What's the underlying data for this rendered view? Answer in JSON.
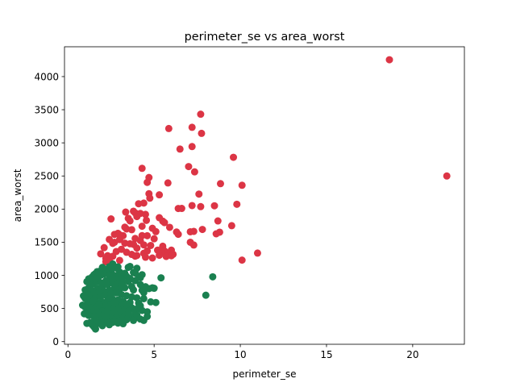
{
  "chart_data": {
    "type": "scatter",
    "title": "perimeter_se vs area_worst",
    "xlabel": "perimeter_se",
    "ylabel": "area_worst",
    "xlim": [
      -0.2,
      23.0
    ],
    "ylim": [
      -40,
      4450
    ],
    "xticks": [
      0,
      5,
      10,
      15,
      20
    ],
    "yticks": [
      0,
      500,
      1000,
      1500,
      2000,
      2500,
      3000,
      3500,
      4000
    ],
    "grid": false,
    "legend": "none",
    "series": [
      {
        "color": "#dc3545",
        "points": [
          [
            18.65,
            4254
          ],
          [
            21.98,
            2500
          ],
          [
            7.7,
            3432
          ],
          [
            5.85,
            3216
          ],
          [
            7.2,
            3234
          ],
          [
            7.75,
            3143
          ],
          [
            6.5,
            2906
          ],
          [
            7.2,
            2944
          ],
          [
            9.6,
            2782
          ],
          [
            7.0,
            2642
          ],
          [
            4.3,
            2615
          ],
          [
            7.35,
            2562
          ],
          [
            4.7,
            2477
          ],
          [
            4.6,
            2403
          ],
          [
            5.8,
            2395
          ],
          [
            8.85,
            2384
          ],
          [
            10.1,
            2360
          ],
          [
            4.7,
            2232
          ],
          [
            5.3,
            2215
          ],
          [
            7.6,
            2227
          ],
          [
            4.75,
            2165
          ],
          [
            4.4,
            2091
          ],
          [
            4.1,
            2081
          ],
          [
            9.8,
            2073
          ],
          [
            7.2,
            2053
          ],
          [
            7.7,
            2037
          ],
          [
            8.5,
            2050
          ],
          [
            6.4,
            2009
          ],
          [
            6.6,
            2010
          ],
          [
            3.35,
            1955
          ],
          [
            3.8,
            1968
          ],
          [
            3.9,
            1942
          ],
          [
            4.2,
            1935
          ],
          [
            4.5,
            1920
          ],
          [
            4.0,
            1887
          ],
          [
            5.3,
            1870
          ],
          [
            3.5,
            1860
          ],
          [
            2.5,
            1852
          ],
          [
            4.55,
            1830
          ],
          [
            3.6,
            1822
          ],
          [
            8.7,
            1821
          ],
          [
            5.5,
            1818
          ],
          [
            5.6,
            1796
          ],
          [
            9.5,
            1750
          ],
          [
            4.3,
            1741
          ],
          [
            5.9,
            1725
          ],
          [
            3.3,
            1727
          ],
          [
            4.9,
            1710
          ],
          [
            3.4,
            1700
          ],
          [
            3.7,
            1689
          ],
          [
            7.8,
            1693
          ],
          [
            5.1,
            1660
          ],
          [
            6.3,
            1654
          ],
          [
            7.3,
            1664
          ],
          [
            7.1,
            1658
          ],
          [
            8.8,
            1652
          ],
          [
            8.6,
            1627
          ],
          [
            2.9,
            1634
          ],
          [
            2.7,
            1618
          ],
          [
            3.0,
            1612
          ],
          [
            4.3,
            1600
          ],
          [
            3.2,
            1598
          ],
          [
            4.6,
            1598
          ],
          [
            6.4,
            1620
          ],
          [
            2.4,
            1542
          ],
          [
            3.0,
            1540
          ],
          [
            3.9,
            1557
          ],
          [
            5.0,
            1552
          ],
          [
            4.2,
            1525
          ],
          [
            2.7,
            1500
          ],
          [
            7.1,
            1500
          ],
          [
            3.3,
            1486
          ],
          [
            2.6,
            1483
          ],
          [
            3.6,
            1477
          ],
          [
            3.8,
            1468
          ],
          [
            4.4,
            1460
          ],
          [
            4.8,
            1451
          ],
          [
            7.3,
            1458
          ],
          [
            5.5,
            1440
          ],
          [
            2.1,
            1418
          ],
          [
            4.0,
            1412
          ],
          [
            3.1,
            1393
          ],
          [
            5.2,
            1380
          ],
          [
            6.0,
            1380
          ],
          [
            4.6,
            1368
          ],
          [
            5.6,
            1369
          ],
          [
            2.8,
            1360
          ],
          [
            3.4,
            1348
          ],
          [
            5.4,
            1346
          ],
          [
            4.4,
            1333
          ],
          [
            5.8,
            1340
          ],
          [
            6.1,
            1317
          ],
          [
            11.0,
            1336
          ],
          [
            1.9,
            1325
          ],
          [
            3.7,
            1316
          ],
          [
            5.3,
            1303
          ],
          [
            4.0,
            1300
          ],
          [
            2.3,
            1297
          ],
          [
            3.9,
            1290
          ],
          [
            2.6,
            1288
          ],
          [
            5.7,
            1285
          ],
          [
            6.0,
            1296
          ],
          [
            4.5,
            1274
          ],
          [
            2.2,
            1258
          ],
          [
            4.9,
            1262
          ],
          [
            10.1,
            1230
          ],
          [
            2.2,
            1206
          ],
          [
            2.4,
            1240
          ],
          [
            3.0,
            1226
          ]
        ]
      },
      {
        "color": "#1a8050",
        "points": [
          [
            8.4,
            978
          ],
          [
            8.0,
            700
          ],
          [
            5.4,
            963
          ],
          [
            4.2,
            965
          ],
          [
            4.9,
            812
          ],
          [
            5.0,
            805
          ],
          [
            4.7,
            800
          ],
          [
            4.3,
            776
          ],
          [
            3.4,
            986
          ],
          [
            3.2,
            996
          ],
          [
            3.0,
            1050
          ],
          [
            2.9,
            1128
          ],
          [
            3.5,
            1121
          ],
          [
            2.6,
            1172
          ],
          [
            2.8,
            1110
          ],
          [
            2.5,
            1072
          ],
          [
            2.3,
            1058
          ],
          [
            2.2,
            1087
          ],
          [
            1.9,
            1070
          ],
          [
            1.7,
            1057
          ],
          [
            1.6,
            1027
          ],
          [
            1.5,
            1008
          ],
          [
            1.4,
            975
          ],
          [
            1.2,
            947
          ],
          [
            1.1,
            905
          ],
          [
            1.3,
            895
          ],
          [
            1.5,
            935
          ],
          [
            1.7,
            972
          ],
          [
            1.9,
            1000
          ],
          [
            2.1,
            1017
          ],
          [
            2.4,
            1003
          ],
          [
            2.7,
            999
          ],
          [
            3.0,
            988
          ],
          [
            3.3,
            1031
          ],
          [
            3.8,
            1043
          ],
          [
            4.0,
            1107
          ],
          [
            4.1,
            979
          ],
          [
            3.6,
            952
          ],
          [
            3.1,
            941
          ],
          [
            2.8,
            929
          ],
          [
            2.5,
            933
          ],
          [
            2.2,
            917
          ],
          [
            1.8,
            905
          ],
          [
            1.5,
            876
          ],
          [
            1.3,
            848
          ],
          [
            1.2,
            810
          ],
          [
            1.0,
            780
          ],
          [
            1.4,
            770
          ],
          [
            1.7,
            802
          ],
          [
            2.0,
            830
          ],
          [
            2.3,
            859
          ],
          [
            2.6,
            880
          ],
          [
            2.9,
            872
          ],
          [
            3.2,
            893
          ],
          [
            3.5,
            908
          ],
          [
            3.9,
            920
          ],
          [
            4.2,
            861
          ],
          [
            4.5,
            828
          ],
          [
            3.7,
            830
          ],
          [
            3.3,
            812
          ],
          [
            3.0,
            790
          ],
          [
            2.7,
            805
          ],
          [
            2.4,
            775
          ],
          [
            2.1,
            760
          ],
          [
            1.8,
            742
          ],
          [
            1.5,
            725
          ],
          [
            1.2,
            705
          ],
          [
            0.9,
            690
          ],
          [
            1.0,
            652
          ],
          [
            1.3,
            640
          ],
          [
            1.6,
            660
          ],
          [
            1.9,
            680
          ],
          [
            2.2,
            702
          ],
          [
            2.5,
            720
          ],
          [
            2.8,
            735
          ],
          [
            3.1,
            710
          ],
          [
            3.4,
            693
          ],
          [
            3.7,
            675
          ],
          [
            4.0,
            660
          ],
          [
            4.4,
            648
          ],
          [
            4.8,
            600
          ],
          [
            5.1,
            590
          ],
          [
            4.1,
            580
          ],
          [
            3.6,
            590
          ],
          [
            3.2,
            610
          ],
          [
            2.9,
            628
          ],
          [
            2.6,
            640
          ],
          [
            2.3,
            622
          ],
          [
            2.0,
            600
          ],
          [
            1.7,
            588
          ],
          [
            1.4,
            570
          ],
          [
            1.1,
            560
          ],
          [
            0.85,
            550
          ],
          [
            1.0,
            520
          ],
          [
            1.3,
            510
          ],
          [
            1.6,
            505
          ],
          [
            1.9,
            525
          ],
          [
            2.2,
            540
          ],
          [
            2.5,
            555
          ],
          [
            2.8,
            568
          ],
          [
            3.1,
            540
          ],
          [
            3.4,
            525
          ],
          [
            3.7,
            510
          ],
          [
            4.0,
            495
          ],
          [
            4.3,
            470
          ],
          [
            4.6,
            450
          ],
          [
            3.9,
            440
          ],
          [
            3.5,
            455
          ],
          [
            3.2,
            470
          ],
          [
            2.9,
            488
          ],
          [
            2.6,
            498
          ],
          [
            2.3,
            478
          ],
          [
            2.0,
            460
          ],
          [
            1.7,
            448
          ],
          [
            1.4,
            440
          ],
          [
            1.1,
            430
          ],
          [
            0.95,
            420
          ],
          [
            1.2,
            395
          ],
          [
            1.5,
            380
          ],
          [
            1.8,
            395
          ],
          [
            2.1,
            410
          ],
          [
            2.4,
            420
          ],
          [
            2.7,
            432
          ],
          [
            3.0,
            410
          ],
          [
            3.3,
            395
          ],
          [
            3.6,
            380
          ],
          [
            3.9,
            360
          ],
          [
            4.2,
            340
          ],
          [
            4.6,
            380
          ],
          [
            4.4,
            320
          ],
          [
            3.8,
            320
          ],
          [
            3.4,
            330
          ],
          [
            3.1,
            345
          ],
          [
            2.8,
            360
          ],
          [
            2.5,
            350
          ],
          [
            2.2,
            335
          ],
          [
            1.9,
            320
          ],
          [
            1.6,
            305
          ],
          [
            1.3,
            290
          ],
          [
            1.1,
            275
          ],
          [
            1.4,
            255
          ],
          [
            1.7,
            270
          ],
          [
            2.0,
            285
          ],
          [
            2.3,
            300
          ],
          [
            2.6,
            290
          ],
          [
            2.9,
            280
          ],
          [
            3.2,
            270
          ],
          [
            1.5,
            225
          ],
          [
            1.6,
            190
          ],
          [
            2.0,
            240
          ],
          [
            2.4,
            255
          ],
          [
            2.7,
            312
          ],
          [
            3.0,
            300
          ],
          [
            3.6,
            1135
          ],
          [
            3.9,
            1035
          ],
          [
            4.3,
            1010
          ],
          [
            2.0,
            1120
          ],
          [
            2.4,
            1130
          ],
          [
            1.8,
            1040
          ],
          [
            1.6,
            950
          ],
          [
            2.6,
            945
          ],
          [
            2.0,
            880
          ],
          [
            3.1,
            860
          ],
          [
            3.8,
            780
          ],
          [
            4.4,
            740
          ],
          [
            2.4,
            650
          ],
          [
            1.5,
            620
          ],
          [
            1.8,
            560
          ],
          [
            2.7,
            595
          ],
          [
            3.4,
            560
          ],
          [
            4.2,
            540
          ],
          [
            2.2,
            380
          ],
          [
            3.5,
            420
          ],
          [
            4.0,
            400
          ]
        ]
      }
    ]
  }
}
